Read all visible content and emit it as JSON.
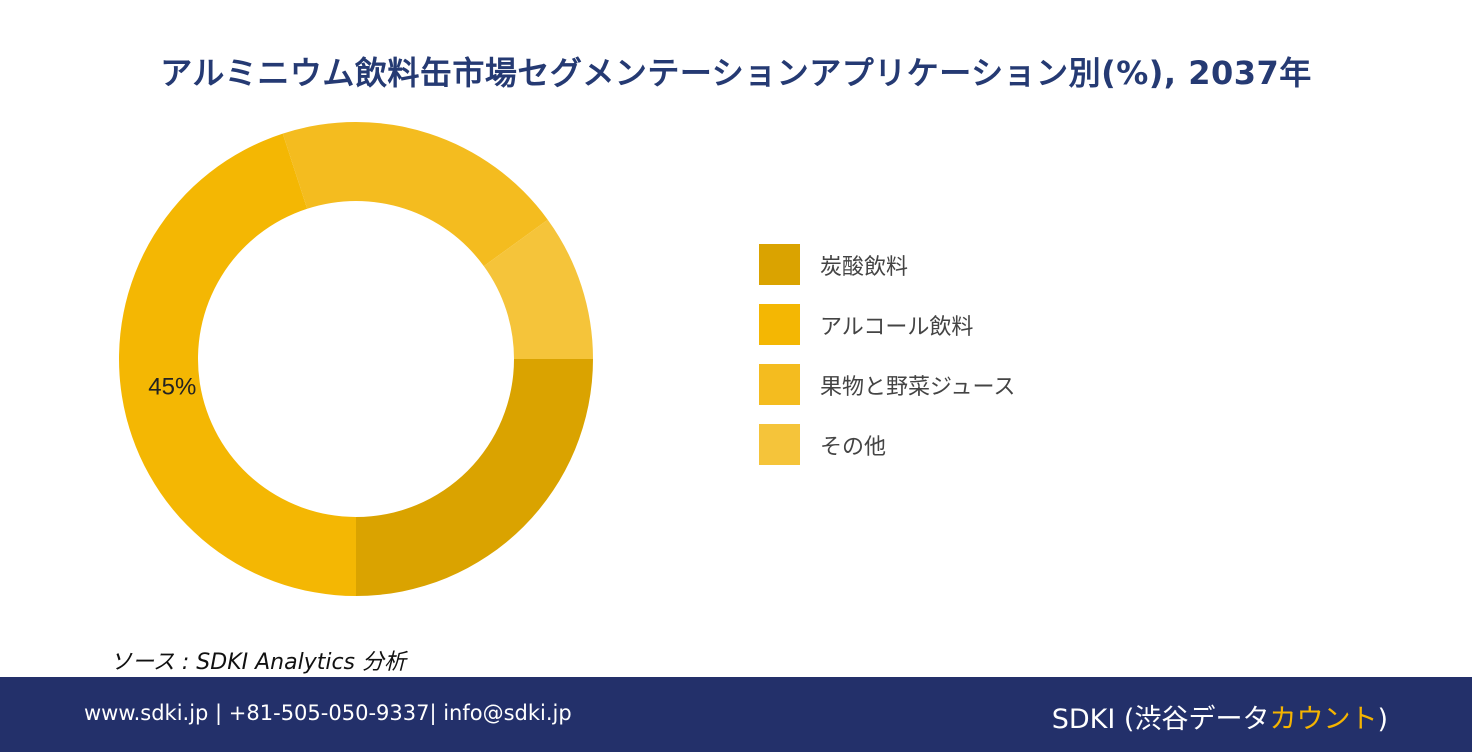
{
  "title": "アルミニウム飲料缶市場セグメンテーションアプリケーション別(%), 2037年",
  "chart_data": {
    "type": "pie",
    "title": "アルミニウム飲料缶市場セグメンテーションアプリケーション別(%), 2037年",
    "categories": [
      "炭酸飲料",
      "アルコール飲料",
      "果物と野菜ジュース",
      "その他"
    ],
    "values": [
      25,
      45,
      20,
      10
    ],
    "colors": [
      "#daa300",
      "#f4b703",
      "#f4bc1f",
      "#f5c43a"
    ],
    "data_labels": [
      "",
      "45%",
      "",
      ""
    ],
    "legend_position": "right"
  },
  "legend": {
    "items": [
      {
        "label": "炭酸飲料",
        "color": "#daa300"
      },
      {
        "label": "アルコール飲料",
        "color": "#f4b703"
      },
      {
        "label": "果物と野菜ジュース",
        "color": "#f4bc1f"
      },
      {
        "label": "その他",
        "color": "#f5c43a"
      }
    ]
  },
  "source": "ソース : SDKI Analytics 分析",
  "footer": {
    "contact": "www.sdki.jp | +81-505-050-9337| info@sdki.jp",
    "brand_prefix": "SDKI (渋谷データ",
    "brand_accent": "カウント",
    "brand_suffix": ")"
  }
}
